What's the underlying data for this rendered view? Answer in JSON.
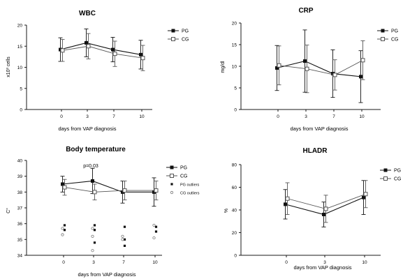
{
  "panels": [
    {
      "id": "wbc",
      "chart_data": {
        "type": "line",
        "title": "WBC",
        "ylabel": "x10³ cells",
        "xlabel": "days from VAP diagnosis",
        "ylim": [
          0,
          20
        ],
        "yticks": [
          "0",
          "5",
          "10",
          "15",
          "20"
        ],
        "categories": [
          "0",
          "3",
          "7",
          "10"
        ],
        "series": [
          {
            "name": "PG",
            "marker": "filled-square",
            "values": [
              14.2,
              15.8,
              14.2,
              13.0
            ],
            "errors": [
              2.8,
              3.3,
              2.9,
              3.4
            ]
          },
          {
            "name": "CG",
            "marker": "open-square",
            "values": [
              14.0,
              15.0,
              13.2,
              12.2
            ],
            "errors": [
              2.6,
              3.0,
              3.0,
              3.0
            ]
          }
        ],
        "grid": false,
        "legend_position": "right"
      }
    },
    {
      "id": "crp",
      "chart_data": {
        "type": "line",
        "title": "CRP",
        "ylabel": "mg/dl",
        "xlabel": "days from VAP diagnosis",
        "ylim": [
          0,
          20
        ],
        "yticks": [
          "0",
          "5",
          "10",
          "15",
          "20"
        ],
        "categories": [
          "0",
          "3",
          "7",
          "10"
        ],
        "series": [
          {
            "name": "PG",
            "marker": "filled-square",
            "values": [
              9.6,
              11.2,
              8.3,
              7.6
            ],
            "errors": [
              5.2,
              7.2,
              5.5,
              6.0
            ]
          },
          {
            "name": "CG",
            "marker": "open-square",
            "values": [
              10.2,
              9.4,
              8.0,
              11.4
            ],
            "errors": [
              4.5,
              5.5,
              3.5,
              4.5
            ]
          }
        ],
        "grid": false,
        "legend_position": "right"
      }
    },
    {
      "id": "temp",
      "chart_data": {
        "type": "line",
        "title": "Body temperature",
        "ylabel": "C°",
        "xlabel": "days from VAP diagnosis",
        "ylim": [
          34,
          40
        ],
        "yticks": [
          "34",
          "35",
          "36",
          "37",
          "38",
          "39",
          "40"
        ],
        "categories": [
          "0",
          "3",
          "7",
          "10"
        ],
        "annotation": "p=0.03",
        "series": [
          {
            "name": "PG",
            "marker": "filled-square",
            "values": [
              38.5,
              38.7,
              38.0,
              38.0
            ],
            "errors": [
              0.5,
              0.8,
              0.7,
              0.9
            ]
          },
          {
            "name": "CG",
            "marker": "open-square",
            "values": [
              38.3,
              38.0,
              38.1,
              38.1
            ],
            "errors": [
              0.5,
              0.5,
              0.6,
              0.6
            ]
          }
        ],
        "outliers": [
          {
            "name": "PG outliers",
            "marker": "filled-point",
            "points": [
              {
                "x": "0",
                "y": 35.9
              },
              {
                "x": "0",
                "y": 35.6
              },
              {
                "x": "3",
                "y": 35.9
              },
              {
                "x": "3",
                "y": 35.6
              },
              {
                "x": "3",
                "y": 34.8
              },
              {
                "x": "7",
                "y": 35.8
              },
              {
                "x": "7",
                "y": 35.0
              },
              {
                "x": "7",
                "y": 34.6
              },
              {
                "x": "10",
                "y": 35.8
              },
              {
                "x": "10",
                "y": 35.5
              }
            ]
          },
          {
            "name": "CG outliers",
            "marker": "open-point",
            "points": [
              {
                "x": "0",
                "y": 35.7
              },
              {
                "x": "0",
                "y": 35.3
              },
              {
                "x": "3",
                "y": 35.7
              },
              {
                "x": "3",
                "y": 35.2
              },
              {
                "x": "3",
                "y": 34.3
              },
              {
                "x": "7",
                "y": 35.2
              },
              {
                "x": "7",
                "y": 35.0
              },
              {
                "x": "10",
                "y": 35.9
              },
              {
                "x": "10",
                "y": 35.1
              }
            ]
          }
        ],
        "legend_entries": [
          "PG",
          "CG",
          "PG outliers",
          "CG outliers"
        ],
        "grid": false,
        "legend_position": "right"
      }
    },
    {
      "id": "hladr",
      "chart_data": {
        "type": "line",
        "title": "HLADR",
        "ylabel": "%",
        "xlabel": "days from VAP diagnosis",
        "ylim": [
          0,
          80
        ],
        "yticks": [
          "0",
          "20",
          "40",
          "60",
          "80"
        ],
        "categories": [
          "0",
          "3",
          "10"
        ],
        "series": [
          {
            "name": "PG",
            "marker": "filled-square",
            "values": [
              45,
              36,
              51
            ],
            "errors": [
              13,
              11,
              15
            ]
          },
          {
            "name": "CG",
            "marker": "open-square",
            "values": [
              50,
              41,
              54
            ],
            "errors": [
              14,
              12,
              12
            ]
          }
        ],
        "grid": false,
        "legend_position": "right"
      }
    }
  ],
  "colors": {
    "axis": "#1a1a1a",
    "pg": "#111111",
    "cg": "#555555",
    "background": "#ffffff"
  }
}
